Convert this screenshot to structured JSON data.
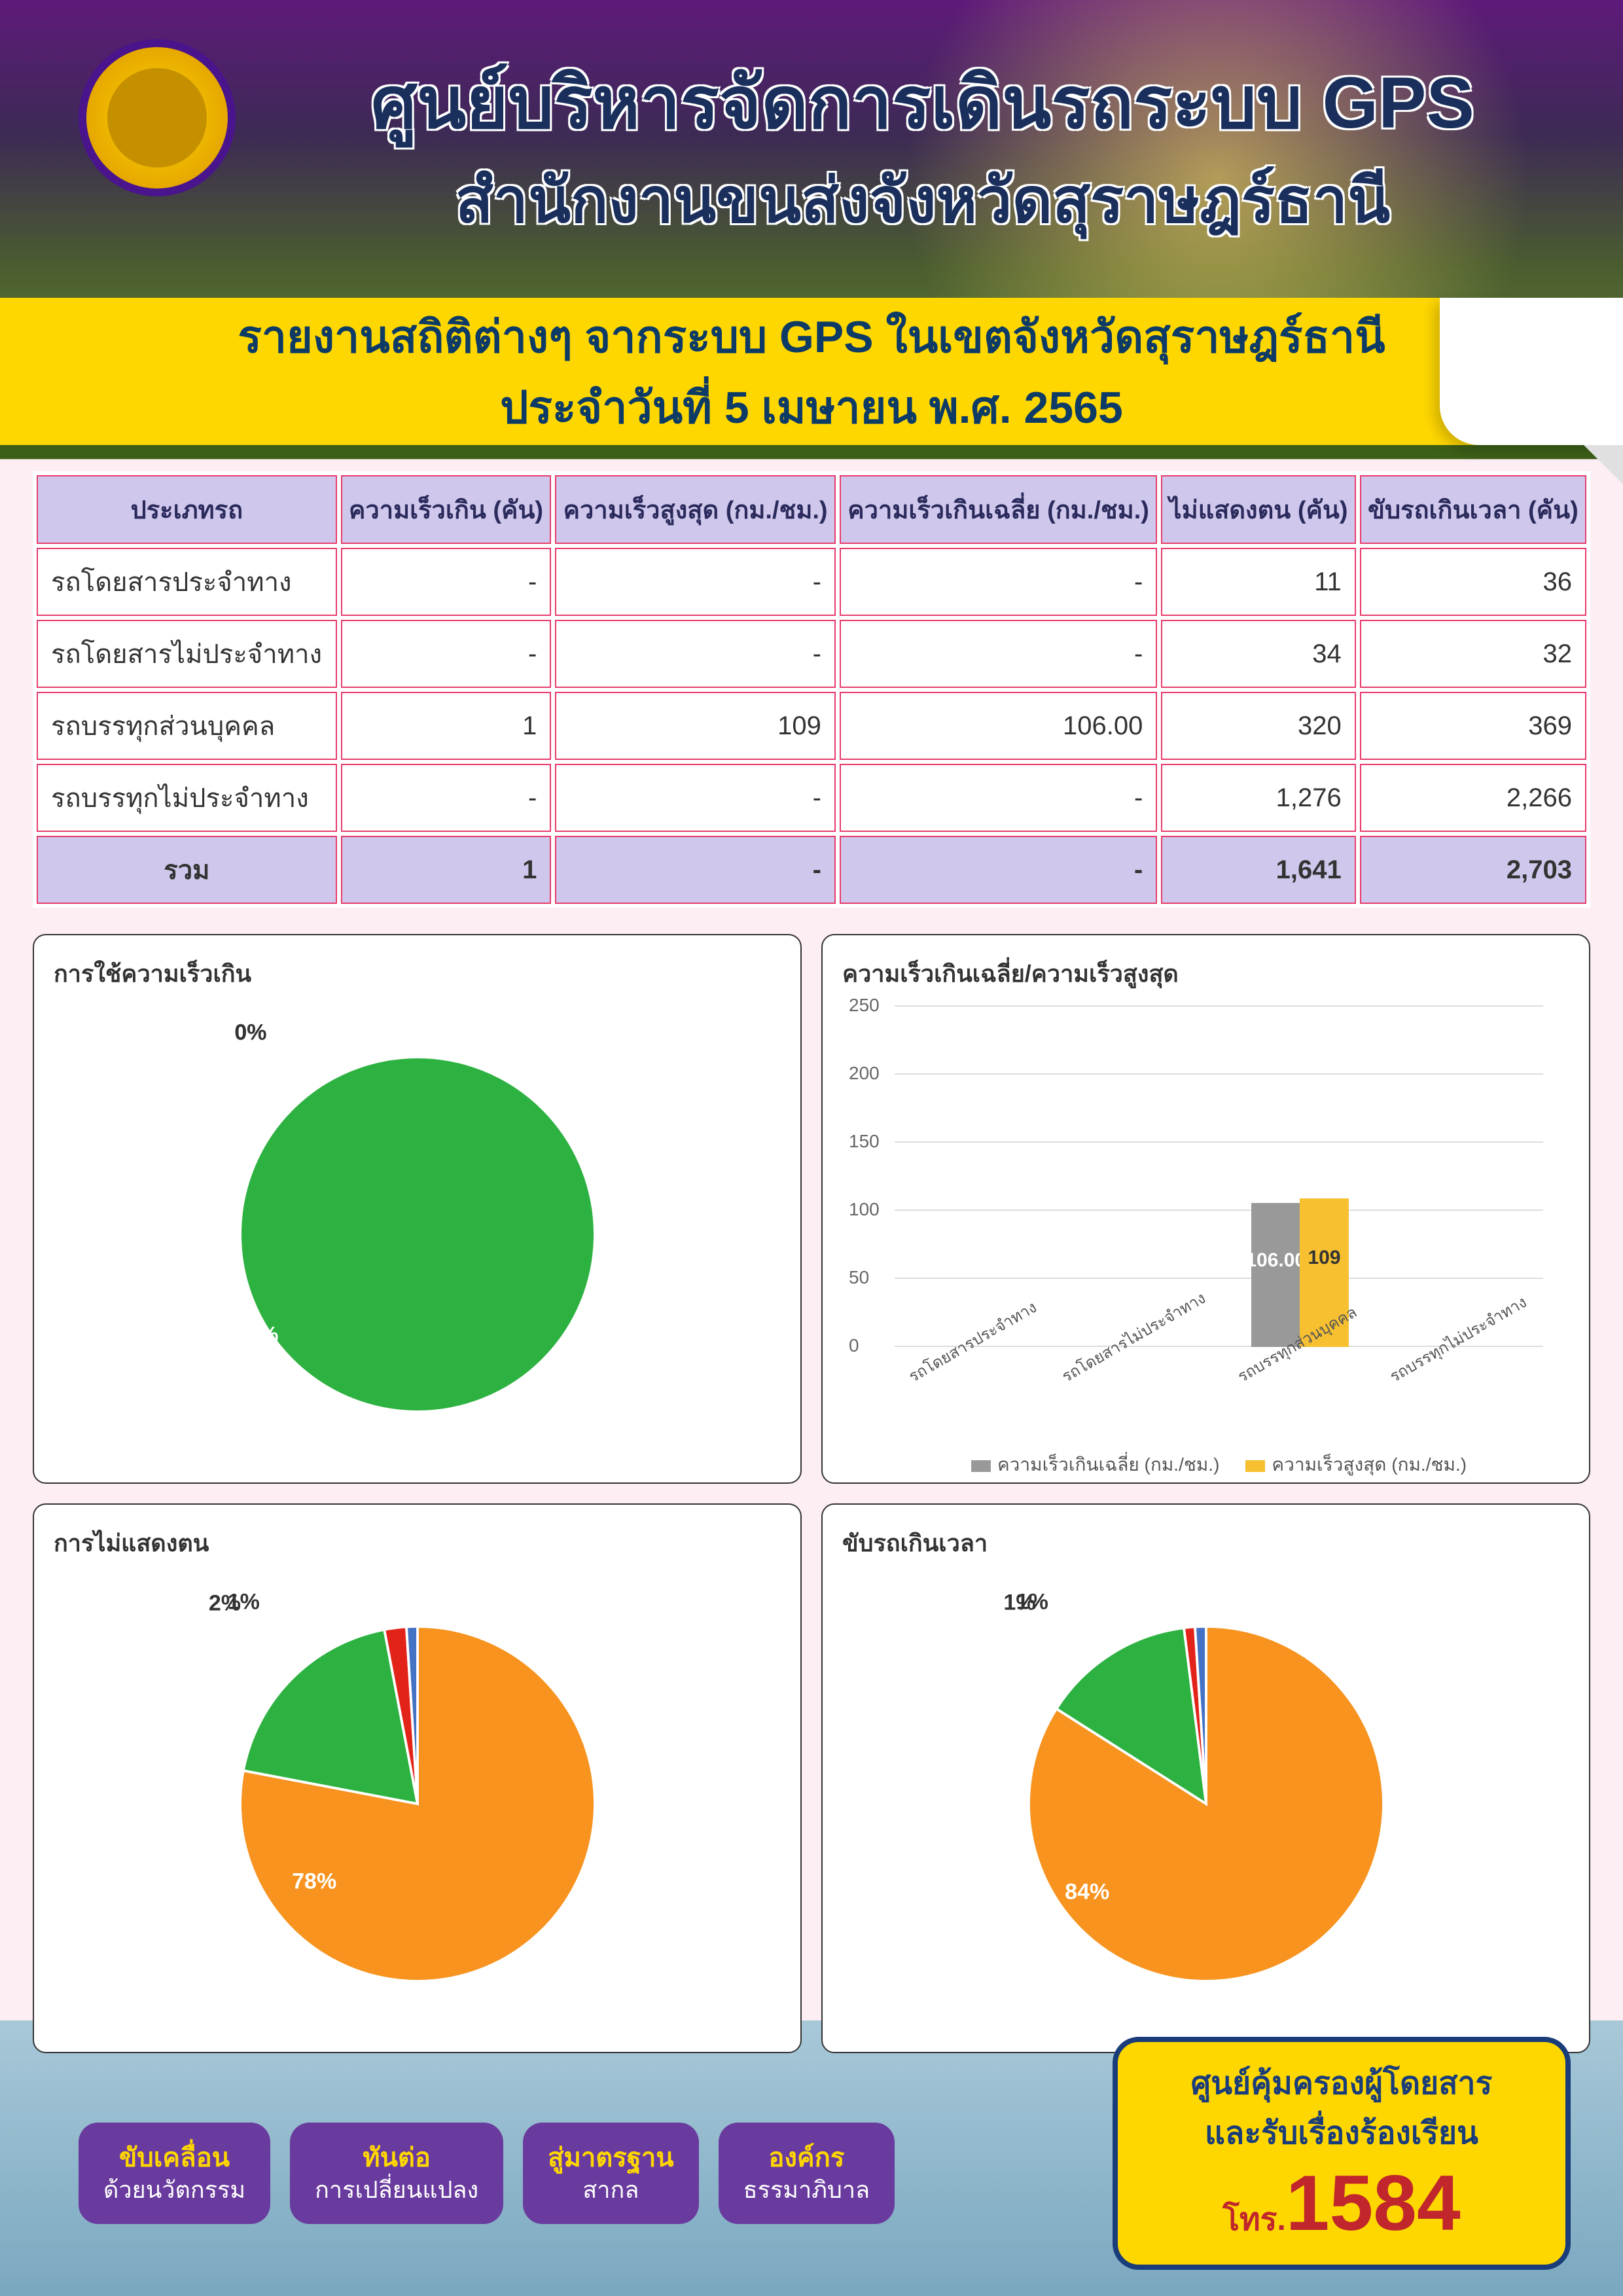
{
  "header": {
    "title": "ศูนย์บริหารจัดการเดินรถระบบ GPS",
    "subtitle": "สำนักงานขนส่งจังหวัดสุราษฎร์ธานี"
  },
  "report": {
    "title": "รายงานสถิติต่างๆ จากระบบ GPS ในเขตจังหวัดสุราษฎร์ธานี",
    "date": "ประจำวันที่  5  เมษายน  พ.ศ. 2565"
  },
  "table": {
    "columns": [
      "ประเภทรถ",
      "ความเร็วเกิน (คัน)",
      "ความเร็วสูงสุด (กม./ชม.)",
      "ความเร็วเกินเฉลี่ย (กม./ชม.)",
      "ไม่แสดงตน (คัน)",
      "ขับรถเกินเวลา (คัน)"
    ],
    "rows": [
      [
        "รถโดยสารประจำทาง",
        "-",
        "-",
        "-",
        "11",
        "36"
      ],
      [
        "รถโดยสารไม่ประจำทาง",
        "-",
        "-",
        "-",
        "34",
        "32"
      ],
      [
        "รถบรรทุกส่วนบุคคล",
        "1",
        "109",
        "106.00",
        "320",
        "369"
      ],
      [
        "รถบรรทุกไม่ประจำทาง",
        "-",
        "-",
        "-",
        "1,276",
        "2,266"
      ]
    ],
    "total": [
      "รวม",
      "1",
      "-",
      "-",
      "1,641",
      "2,703"
    ],
    "header_bg": "#d0c8ec",
    "border_color": "#e83a6b"
  },
  "colors": {
    "green": "#2db241",
    "orange": "#f7931e",
    "blue": "#4472c4",
    "red": "#e2231a",
    "gray": "#999999",
    "yellow": "#f7c031",
    "white": "#ffffff"
  },
  "pie1": {
    "title": "การใช้ความเร็วเกิน",
    "slices": [
      {
        "value": 100,
        "color": "#2db241",
        "label": "100%"
      },
      {
        "value": 0,
        "color": "#f7931e",
        "label": "0%"
      },
      {
        "value": 0,
        "color": "#4472c4",
        "label": "0%"
      }
    ],
    "label_font": 34
  },
  "barchart": {
    "title": "ความเร็วเกินเฉลี่ย/ความเร็วสูงสุด",
    "categories": [
      "รถโดยสารประจำทาง",
      "รถโดยสารไม่ประจำทาง",
      "รถบรรทุกส่วนบุคคล",
      "รถบรรทุกไม่ประจำทาง"
    ],
    "series": [
      {
        "name": "ความเร็วเกินเฉลี่ย (กม./ชม.)",
        "color": "#999999",
        "values": [
          0,
          0,
          106.0,
          0
        ]
      },
      {
        "name": "ความเร็วสูงสุด (กม./ชม.)",
        "color": "#f7c031",
        "values": [
          0,
          0,
          109,
          0
        ]
      }
    ],
    "val_labels": [
      "106.00",
      "109"
    ],
    "ylim": [
      0,
      250
    ],
    "yticks": [
      0,
      50,
      100,
      150,
      200,
      250
    ],
    "tick_fontsize": 28
  },
  "pie3": {
    "title": "การไม่แสดงตน",
    "slices": [
      {
        "value": 78,
        "color": "#f7931e",
        "label": "78%"
      },
      {
        "value": 19,
        "color": "#2db241",
        "label": "19%"
      },
      {
        "value": 2,
        "color": "#e2231a",
        "label": "2%"
      },
      {
        "value": 1,
        "color": "#4472c4",
        "label": "1%"
      }
    ]
  },
  "pie4": {
    "title": "ขับรถเกินเวลา",
    "slices": [
      {
        "value": 84,
        "color": "#f7931e",
        "label": "84%"
      },
      {
        "value": 14,
        "color": "#2db241",
        "label": "14%"
      },
      {
        "value": 1,
        "color": "#e2231a",
        "label": "1%"
      },
      {
        "value": 1,
        "color": "#4472c4",
        "label": "1%"
      }
    ]
  },
  "footer": {
    "badges": [
      {
        "top": "ขับเคลื่อน",
        "bottom": "ด้วยนวัตกรรม"
      },
      {
        "top": "ทันต่อ",
        "bottom": "การเปลี่ยนแปลง"
      },
      {
        "top": "สู่มาตรฐาน",
        "bottom": "สากล"
      },
      {
        "top": "องค์กร",
        "bottom": "ธรรมาภิบาล"
      }
    ],
    "callout": {
      "line1": "ศูนย์คุ้มครองผู้โดยสาร",
      "line2": "และรับเรื่องร้องเรียน",
      "phone_prefix": "โทร.",
      "phone": "1584"
    }
  }
}
